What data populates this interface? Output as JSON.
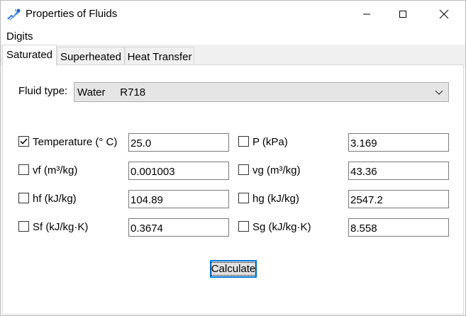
{
  "window": {
    "title": "Properties of Fluids"
  },
  "menu": {
    "items": [
      "Digits"
    ]
  },
  "tabs": [
    {
      "label": "Saturated",
      "active": true
    },
    {
      "label": "Superheated",
      "active": false
    },
    {
      "label": "Heat Transfer",
      "active": false
    }
  ],
  "fluid": {
    "label": "Fluid type:",
    "selected": "Water     R718"
  },
  "properties": {
    "temperature": {
      "label": "Temperature (° C)",
      "checked": true,
      "value": "25.0"
    },
    "pressure": {
      "label": "P (kPa)",
      "checked": false,
      "value": "3.169"
    },
    "vf": {
      "label": "vf (m³/kg)",
      "checked": false,
      "value": "0.001003"
    },
    "vg": {
      "label": "vg (m³/kg)",
      "checked": false,
      "value": "43.36"
    },
    "hf": {
      "label": "hf (kJ/kg)",
      "checked": false,
      "value": "104.89"
    },
    "hg": {
      "label": "hg (kJ/kg)",
      "checked": false,
      "value": "2547.2"
    },
    "sf": {
      "label": "Sf (kJ/kg·K)",
      "checked": false,
      "value": "0.3674"
    },
    "sg": {
      "label": "Sg (kJ/kg·K)",
      "checked": false,
      "value": "8.558"
    }
  },
  "actions": {
    "calculate_label": "Calculate"
  },
  "colors": {
    "focus": "#0078d7",
    "tab_bg": "#f0f0f0",
    "select_bg": "#e5e5e5"
  },
  "icons": {
    "app": "fluid-app-icon",
    "minimize": "minimize-icon",
    "maximize": "maximize-icon",
    "close": "close-icon",
    "dropdown": "chevron-down-icon",
    "checkmark": "checkmark-icon"
  }
}
